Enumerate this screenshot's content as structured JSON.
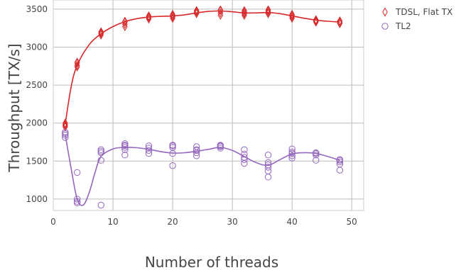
{
  "chart_data": {
    "type": "scatter",
    "title": "",
    "xlabel": "Number of threads",
    "ylabel": "Throughput [TX/s]",
    "xlim": [
      0,
      52
    ],
    "ylim": [
      850,
      3620
    ],
    "xticks": [
      0,
      10,
      20,
      30,
      40,
      50
    ],
    "yticks": [
      1000,
      1500,
      2000,
      2500,
      3000,
      3500
    ],
    "grid": true,
    "legend_position": "top-right",
    "series": [
      {
        "name": "TDSL, Flat TX",
        "color": "#d62728",
        "marker": "diamond",
        "points": [
          [
            2,
            1950
          ],
          [
            2,
            1980
          ],
          [
            2,
            2000
          ],
          [
            2,
            1970
          ],
          [
            4,
            2740
          ],
          [
            4,
            2760
          ],
          [
            4,
            2790
          ],
          [
            4,
            2800
          ],
          [
            8,
            3160
          ],
          [
            8,
            3180
          ],
          [
            8,
            3200
          ],
          [
            8,
            3190
          ],
          [
            12,
            3270
          ],
          [
            12,
            3300
          ],
          [
            12,
            3330
          ],
          [
            12,
            3340
          ],
          [
            16,
            3370
          ],
          [
            16,
            3390
          ],
          [
            16,
            3410
          ],
          [
            16,
            3400
          ],
          [
            20,
            3380
          ],
          [
            20,
            3400
          ],
          [
            20,
            3430
          ],
          [
            20,
            3420
          ],
          [
            24,
            3440
          ],
          [
            24,
            3460
          ],
          [
            24,
            3480
          ],
          [
            24,
            3470
          ],
          [
            28,
            3420
          ],
          [
            28,
            3450
          ],
          [
            28,
            3480
          ],
          [
            28,
            3490
          ],
          [
            32,
            3420
          ],
          [
            32,
            3440
          ],
          [
            32,
            3460
          ],
          [
            32,
            3480
          ],
          [
            36,
            3440
          ],
          [
            36,
            3460
          ],
          [
            36,
            3480
          ],
          [
            36,
            3490
          ],
          [
            40,
            3380
          ],
          [
            40,
            3400
          ],
          [
            40,
            3420
          ],
          [
            40,
            3430
          ],
          [
            44,
            3330
          ],
          [
            44,
            3340
          ],
          [
            44,
            3350
          ],
          [
            44,
            3360
          ],
          [
            48,
            3310
          ],
          [
            48,
            3320
          ],
          [
            48,
            3340
          ],
          [
            48,
            3345
          ]
        ],
        "curve": [
          [
            2,
            1985
          ],
          [
            3,
            2480
          ],
          [
            4,
            2760
          ],
          [
            6,
            3030
          ],
          [
            8,
            3175
          ],
          [
            10,
            3270
          ],
          [
            12,
            3335
          ],
          [
            14,
            3375
          ],
          [
            16,
            3395
          ],
          [
            18,
            3405
          ],
          [
            20,
            3410
          ],
          [
            22,
            3425
          ],
          [
            24,
            3450
          ],
          [
            26,
            3470
          ],
          [
            28,
            3475
          ],
          [
            30,
            3465
          ],
          [
            32,
            3450
          ],
          [
            34,
            3450
          ],
          [
            36,
            3455
          ],
          [
            38,
            3440
          ],
          [
            40,
            3410
          ],
          [
            42,
            3380
          ],
          [
            44,
            3355
          ],
          [
            46,
            3340
          ],
          [
            48,
            3330
          ]
        ]
      },
      {
        "name": "TL2",
        "color": "#9467bd",
        "marker": "circle",
        "points": [
          [
            2,
            1810
          ],
          [
            2,
            1840
          ],
          [
            2,
            1860
          ],
          [
            2,
            1880
          ],
          [
            4,
            950
          ],
          [
            4,
            970
          ],
          [
            4,
            1000
          ],
          [
            4,
            1350
          ],
          [
            8,
            920
          ],
          [
            8,
            1510
          ],
          [
            8,
            1610
          ],
          [
            8,
            1630
          ],
          [
            8,
            1650
          ],
          [
            12,
            1580
          ],
          [
            12,
            1650
          ],
          [
            12,
            1680
          ],
          [
            12,
            1700
          ],
          [
            12,
            1710
          ],
          [
            12,
            1730
          ],
          [
            16,
            1600
          ],
          [
            16,
            1640
          ],
          [
            16,
            1670
          ],
          [
            16,
            1700
          ],
          [
            20,
            1440
          ],
          [
            20,
            1600
          ],
          [
            20,
            1680
          ],
          [
            20,
            1700
          ],
          [
            20,
            1710
          ],
          [
            24,
            1570
          ],
          [
            24,
            1610
          ],
          [
            24,
            1640
          ],
          [
            24,
            1650
          ],
          [
            24,
            1690
          ],
          [
            28,
            1670
          ],
          [
            28,
            1690
          ],
          [
            28,
            1700
          ],
          [
            28,
            1710
          ],
          [
            32,
            1470
          ],
          [
            32,
            1520
          ],
          [
            32,
            1550
          ],
          [
            32,
            1590
          ],
          [
            32,
            1650
          ],
          [
            36,
            1290
          ],
          [
            36,
            1370
          ],
          [
            36,
            1420
          ],
          [
            36,
            1450
          ],
          [
            36,
            1480
          ],
          [
            36,
            1580
          ],
          [
            40,
            1540
          ],
          [
            40,
            1570
          ],
          [
            40,
            1600
          ],
          [
            40,
            1620
          ],
          [
            40,
            1660
          ],
          [
            44,
            1510
          ],
          [
            44,
            1580
          ],
          [
            44,
            1600
          ],
          [
            44,
            1610
          ],
          [
            48,
            1380
          ],
          [
            48,
            1460
          ],
          [
            48,
            1490
          ],
          [
            48,
            1510
          ],
          [
            48,
            1520
          ]
        ],
        "curve": [
          [
            2,
            1850
          ],
          [
            3,
            1400
          ],
          [
            4,
            1000
          ],
          [
            5,
            920
          ],
          [
            6,
            1080
          ],
          [
            7,
            1350
          ],
          [
            8,
            1560
          ],
          [
            10,
            1660
          ],
          [
            12,
            1680
          ],
          [
            14,
            1675
          ],
          [
            16,
            1655
          ],
          [
            18,
            1625
          ],
          [
            20,
            1605
          ],
          [
            22,
            1610
          ],
          [
            24,
            1630
          ],
          [
            26,
            1655
          ],
          [
            28,
            1680
          ],
          [
            30,
            1640
          ],
          [
            32,
            1560
          ],
          [
            34,
            1480
          ],
          [
            36,
            1445
          ],
          [
            38,
            1520
          ],
          [
            40,
            1595
          ],
          [
            42,
            1610
          ],
          [
            44,
            1600
          ],
          [
            46,
            1560
          ],
          [
            48,
            1510
          ]
        ]
      }
    ]
  }
}
